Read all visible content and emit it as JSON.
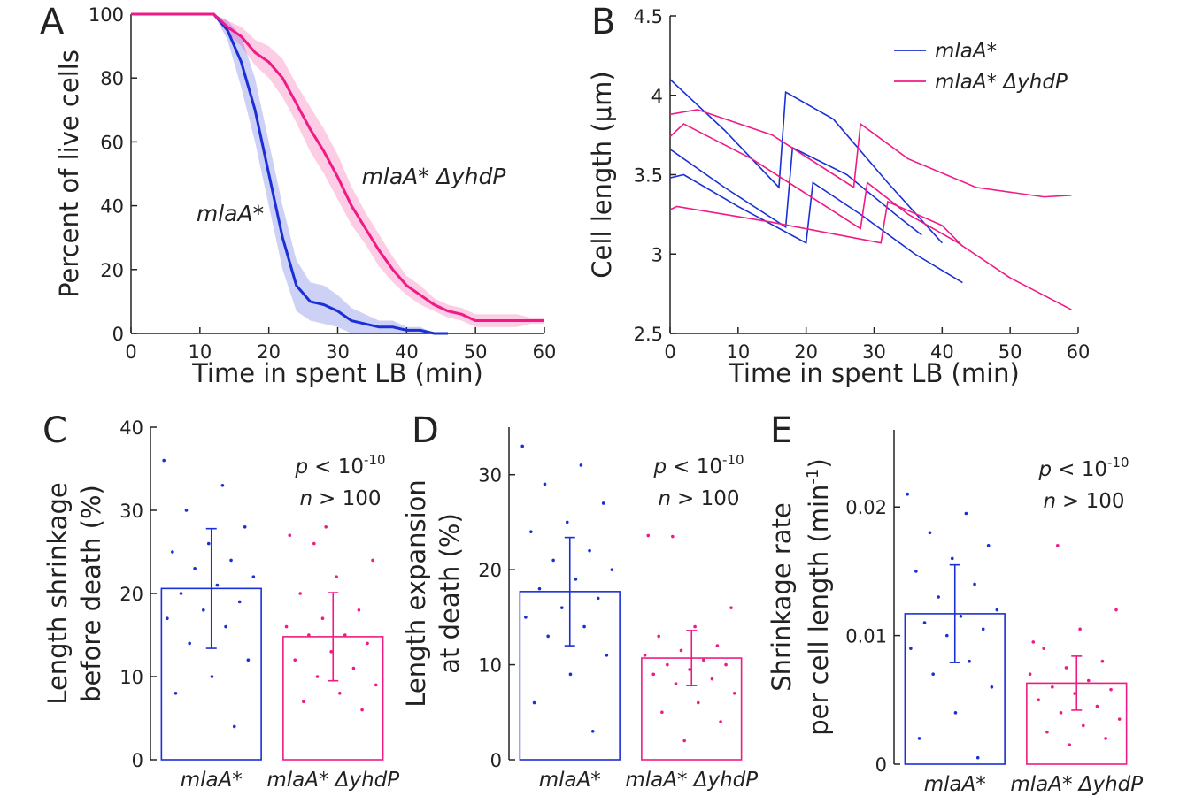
{
  "chart_data": [
    {
      "type": "line",
      "panel": "A",
      "xlabel": "Time in spent LB (min)",
      "ylabel": [
        "Percent of live cells"
      ],
      "x": [
        0,
        2,
        4,
        6,
        8,
        10,
        12,
        14,
        16,
        18,
        20,
        22,
        24,
        26,
        28,
        30,
        32,
        34,
        36,
        38,
        40,
        42,
        44,
        46,
        48,
        50,
        52,
        54,
        56,
        58,
        60
      ],
      "xlim": [
        0,
        60
      ],
      "xticks": [
        0,
        10,
        20,
        30,
        40,
        50,
        60
      ],
      "ylim": [
        0,
        100
      ],
      "yticks": [
        0,
        20,
        40,
        60,
        80,
        100
      ],
      "series": [
        {
          "name": "mlaA*",
          "color": "#1a2fd6",
          "values": [
            100,
            100,
            100,
            100,
            100,
            100,
            100,
            95,
            85,
            70,
            50,
            30,
            15,
            10,
            9,
            7,
            4,
            3,
            2,
            2,
            1,
            1,
            0,
            0,
            null,
            null,
            null,
            null,
            null,
            null,
            null
          ],
          "errors": [
            0,
            0,
            0,
            0,
            0,
            0,
            0,
            3,
            8,
            10,
            10,
            10,
            8,
            6,
            6,
            5,
            4,
            3,
            2,
            2,
            1,
            1,
            0,
            0,
            null,
            null,
            null,
            null,
            null,
            null,
            null
          ]
        },
        {
          "name": "mlaA* ΔyhdP",
          "color": "#f01a86",
          "values": [
            100,
            100,
            100,
            100,
            100,
            100,
            100,
            96,
            93,
            88,
            85,
            80,
            72,
            64,
            57,
            49,
            40,
            33,
            26,
            20,
            15,
            12,
            9,
            7,
            6,
            4,
            4,
            4,
            4,
            4,
            4
          ],
          "errors": [
            0,
            0,
            0,
            0,
            0,
            0,
            0,
            2,
            3,
            4,
            5,
            6,
            6,
            7,
            7,
            7,
            6,
            5,
            5,
            4,
            3,
            3,
            2,
            2,
            2,
            2,
            2,
            2,
            2,
            1,
            1
          ]
        }
      ]
    },
    {
      "type": "line",
      "panel": "B",
      "xlabel": "Time in spent LB (min)",
      "ylabel": [
        "Cell length (μm)"
      ],
      "xlim": [
        0,
        60
      ],
      "xticks": [
        0,
        10,
        20,
        30,
        40,
        50,
        60
      ],
      "ylim": [
        2.5,
        4.5
      ],
      "yticks": [
        2.5,
        3,
        3.5,
        4,
        4.5
      ],
      "groups": [
        {
          "name": "mlaA*",
          "color": "#1a2fd6",
          "traces": [
            {
              "x": [
                0,
                8,
                16,
                17,
                24,
                32,
                40
              ],
              "values": [
                4.1,
                3.78,
                3.42,
                4.02,
                3.85,
                3.45,
                3.07
              ]
            },
            {
              "x": [
                0,
                8,
                17,
                18,
                26,
                34,
                37
              ],
              "values": [
                3.66,
                3.42,
                3.17,
                3.67,
                3.5,
                3.22,
                3.12
              ]
            },
            {
              "x": [
                0,
                2,
                10,
                20,
                21,
                28,
                36,
                43
              ],
              "values": [
                3.48,
                3.5,
                3.3,
                3.07,
                3.45,
                3.25,
                3.0,
                2.82
              ]
            }
          ]
        },
        {
          "name": "mlaA* ΔyhdP",
          "color": "#f01a86",
          "traces": [
            {
              "x": [
                0,
                4,
                15,
                27,
                28,
                35,
                45,
                55,
                59
              ],
              "values": [
                3.88,
                3.91,
                3.75,
                3.42,
                3.82,
                3.6,
                3.42,
                3.36,
                3.37
              ]
            },
            {
              "x": [
                0,
                2,
                12,
                28,
                29,
                35,
                42,
                50,
                59
              ],
              "values": [
                3.74,
                3.82,
                3.6,
                3.16,
                3.45,
                3.25,
                3.08,
                2.85,
                2.65
              ]
            },
            {
              "x": [
                0,
                1,
                15,
                31,
                32,
                40,
                43
              ],
              "values": [
                3.28,
                3.3,
                3.2,
                3.07,
                3.33,
                3.18,
                3.05
              ]
            }
          ]
        }
      ]
    },
    {
      "type": "bar",
      "panel": "C",
      "ylabel": [
        "Length shrinkage",
        "before death (%)"
      ],
      "categories": [
        "mlaA*",
        "mlaA* ΔyhdP"
      ],
      "colors": [
        "#1a2fd6",
        "#f01a86"
      ],
      "values": [
        20.6,
        14.8
      ],
      "errors": [
        7.2,
        5.3
      ],
      "points": [
        [
          36,
          33,
          30,
          28,
          26,
          25,
          24,
          23,
          22,
          21,
          20,
          19,
          18,
          17,
          16,
          14,
          12,
          10,
          8,
          4
        ],
        [
          26,
          24,
          22,
          20,
          18,
          17,
          16,
          15,
          15,
          14,
          13,
          12,
          11,
          10,
          9,
          8,
          7,
          6,
          28,
          27
        ]
      ],
      "ylim": [
        0,
        40
      ],
      "yticks": [
        0,
        10,
        20,
        30,
        40
      ],
      "annotation": {
        "p_label": "p",
        "p_rel": "< 10",
        "p_exp": "-10",
        "n_label": "n",
        "n_rel": "> 100"
      }
    },
    {
      "type": "bar",
      "panel": "D",
      "ylabel": [
        "Length expansion",
        "at death (%)"
      ],
      "categories": [
        "mlaA*",
        "mlaA* ΔyhdP"
      ],
      "colors": [
        "#1a2fd6",
        "#f01a86"
      ],
      "values": [
        17.7,
        10.7
      ],
      "errors": [
        5.7,
        2.9
      ],
      "points": [
        [
          33,
          31,
          29,
          27,
          25,
          24,
          22,
          21,
          20,
          19,
          18,
          17,
          16,
          15,
          14,
          13,
          11,
          9,
          6,
          3
        ],
        [
          23.5,
          16,
          14,
          13,
          12,
          11.5,
          11,
          10.5,
          10,
          10,
          9.5,
          9,
          8.5,
          8,
          7,
          6,
          5,
          4,
          2,
          23.6
        ]
      ],
      "ylim": [
        0,
        35
      ],
      "yticks": [
        0,
        10,
        20,
        30
      ],
      "annotation": {
        "p_label": "p",
        "p_rel": "< 10",
        "p_exp": "-10",
        "n_label": "n",
        "n_rel": "> 100"
      }
    },
    {
      "type": "bar",
      "panel": "E",
      "ylabel": [
        "Shrinkage rate",
        "per cell length (min"
      ],
      "ylabel_sup": "-1",
      "ylabel_end": ")",
      "categories": [
        "mlaA*",
        "mlaA* ΔyhdP"
      ],
      "colors": [
        "#1a2fd6",
        "#f01a86"
      ],
      "values": [
        0.0117,
        0.0063
      ],
      "errors": [
        0.0038,
        0.0021
      ],
      "points": [
        [
          0.021,
          0.0195,
          0.018,
          0.017,
          0.016,
          0.015,
          0.014,
          0.013,
          0.012,
          0.0115,
          0.011,
          0.0105,
          0.01,
          0.009,
          0.008,
          0.007,
          0.006,
          0.004,
          0.002,
          0.0005
        ],
        [
          0.017,
          0.012,
          0.0105,
          0.009,
          0.008,
          0.0075,
          0.007,
          0.0065,
          0.006,
          0.0058,
          0.0055,
          0.005,
          0.0045,
          0.004,
          0.0035,
          0.003,
          0.0025,
          0.002,
          0.0015,
          0.0095
        ]
      ],
      "ylim": [
        0,
        0.026
      ],
      "yticks": [
        0,
        0.01,
        0.02
      ],
      "annotation": {
        "p_label": "p",
        "p_rel": "< 10",
        "p_exp": "-10",
        "n_label": "n",
        "n_rel": "> 100"
      }
    }
  ]
}
